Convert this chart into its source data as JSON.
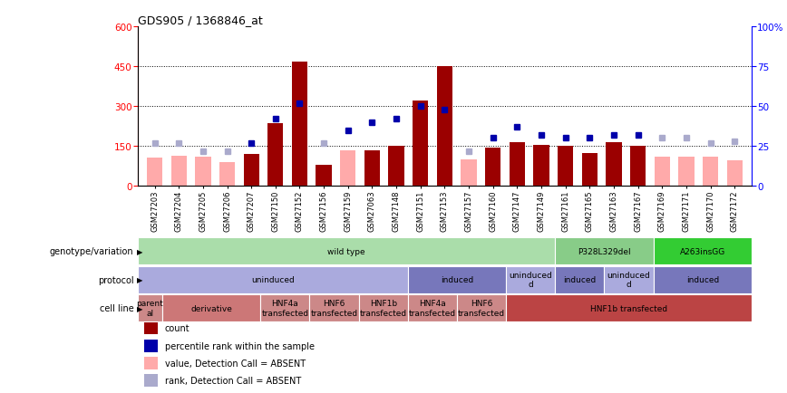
{
  "title": "GDS905 / 1368846_at",
  "samples": [
    "GSM27203",
    "GSM27204",
    "GSM27205",
    "GSM27206",
    "GSM27207",
    "GSM27150",
    "GSM27152",
    "GSM27156",
    "GSM27159",
    "GSM27063",
    "GSM27148",
    "GSM27151",
    "GSM27153",
    "GSM27157",
    "GSM27160",
    "GSM27147",
    "GSM27149",
    "GSM27161",
    "GSM27165",
    "GSM27163",
    "GSM27167",
    "GSM27169",
    "GSM27171",
    "GSM27170",
    "GSM27172"
  ],
  "count_values": [
    105,
    115,
    110,
    90,
    120,
    235,
    470,
    80,
    135,
    135,
    150,
    320,
    450,
    100,
    145,
    165,
    155,
    150,
    125,
    165,
    150,
    110,
    110,
    110,
    95
  ],
  "absent_count": [
    true,
    true,
    true,
    true,
    false,
    false,
    false,
    false,
    true,
    false,
    false,
    false,
    false,
    true,
    false,
    false,
    false,
    false,
    false,
    false,
    false,
    true,
    true,
    true,
    true
  ],
  "rank_values": [
    27,
    27,
    22,
    22,
    27,
    42,
    52,
    27,
    35,
    40,
    42,
    50,
    48,
    22,
    30,
    37,
    32,
    30,
    30,
    32,
    32,
    30,
    30,
    27,
    28
  ],
  "rank_absent": [
    true,
    true,
    true,
    true,
    false,
    false,
    false,
    true,
    false,
    false,
    false,
    false,
    false,
    true,
    false,
    false,
    false,
    false,
    false,
    false,
    false,
    true,
    true,
    true,
    true
  ],
  "ylim_left": [
    0,
    600
  ],
  "ylim_right": [
    0,
    100
  ],
  "yticks_left": [
    0,
    150,
    300,
    450,
    600
  ],
  "yticks_right": [
    0,
    25,
    50,
    75,
    100
  ],
  "color_dark_red": "#9B0000",
  "color_pink": "#FFAAAA",
  "color_blue": "#0000AA",
  "color_lightblue": "#AAAACC",
  "annotation_rows": [
    {
      "label": "genotype/variation",
      "segments": [
        {
          "text": "wild type",
          "start": 0,
          "end": 17,
          "color": "#AADDAA"
        },
        {
          "text": "P328L329del",
          "start": 17,
          "end": 21,
          "color": "#88CC88"
        },
        {
          "text": "A263insGG",
          "start": 21,
          "end": 25,
          "color": "#33CC33"
        }
      ]
    },
    {
      "label": "protocol",
      "segments": [
        {
          "text": "uninduced",
          "start": 0,
          "end": 11,
          "color": "#AAAADD"
        },
        {
          "text": "induced",
          "start": 11,
          "end": 15,
          "color": "#7777BB"
        },
        {
          "text": "uninduced\nd",
          "start": 15,
          "end": 17,
          "color": "#AAAADD"
        },
        {
          "text": "induced",
          "start": 17,
          "end": 19,
          "color": "#7777BB"
        },
        {
          "text": "uninduced\nd",
          "start": 19,
          "end": 21,
          "color": "#AAAADD"
        },
        {
          "text": "induced",
          "start": 21,
          "end": 25,
          "color": "#7777BB"
        }
      ]
    },
    {
      "label": "cell line",
      "segments": [
        {
          "text": "parent\nal",
          "start": 0,
          "end": 1,
          "color": "#CC8888"
        },
        {
          "text": "derivative",
          "start": 1,
          "end": 5,
          "color": "#CC7777"
        },
        {
          "text": "HNF4a\ntransfected",
          "start": 5,
          "end": 7,
          "color": "#CC8888"
        },
        {
          "text": "HNF6\ntransfected",
          "start": 7,
          "end": 9,
          "color": "#CC8888"
        },
        {
          "text": "HNF1b\ntransfected",
          "start": 9,
          "end": 11,
          "color": "#CC8888"
        },
        {
          "text": "HNF4a\ntransfected",
          "start": 11,
          "end": 13,
          "color": "#CC8888"
        },
        {
          "text": "HNF6\ntransfected",
          "start": 13,
          "end": 15,
          "color": "#CC8888"
        },
        {
          "text": "HNF1b transfected",
          "start": 15,
          "end": 25,
          "color": "#BB4444"
        }
      ]
    }
  ],
  "legend_items": [
    {
      "color": "#9B0000",
      "label": "count"
    },
    {
      "color": "#0000AA",
      "label": "percentile rank within the sample"
    },
    {
      "color": "#FFAAAA",
      "label": "value, Detection Call = ABSENT"
    },
    {
      "color": "#AAAACC",
      "label": "rank, Detection Call = ABSENT"
    }
  ]
}
